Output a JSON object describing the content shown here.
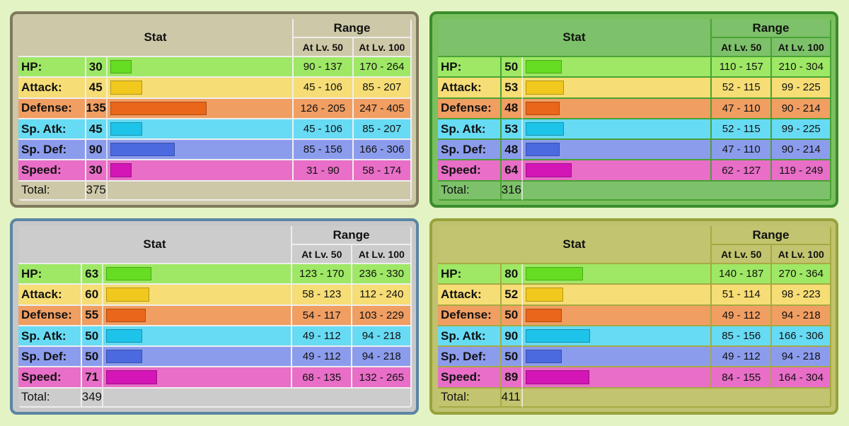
{
  "headers": {
    "stat": "Stat",
    "range": "Range",
    "lv50": "At Lv. 50",
    "lv100": "At Lv. 100",
    "total": "Total:"
  },
  "stat_labels": [
    "HP:",
    "Attack:",
    "Defense:",
    "Sp. Atk:",
    "Sp. Def:",
    "Speed:"
  ],
  "bar_colors": [
    "#66dd22",
    "#f0c81e",
    "#e9661a",
    "#1ec3e9",
    "#4b6ae0",
    "#d316b5"
  ],
  "panels": [
    {
      "theme": "tan",
      "values": [
        30,
        45,
        135,
        45,
        90,
        30
      ],
      "lv50": [
        "90 - 137",
        "45 - 106",
        "126 - 205",
        "45 - 106",
        "85 - 156",
        "31 - 90"
      ],
      "lv100": [
        "170 - 264",
        "85 - 207",
        "247 - 405",
        "85 - 207",
        "166 - 306",
        "58 - 174"
      ],
      "total": "375"
    },
    {
      "theme": "green",
      "values": [
        50,
        53,
        48,
        53,
        48,
        64
      ],
      "lv50": [
        "110 - 157",
        "52 - 115",
        "47 - 110",
        "52 - 115",
        "47 - 110",
        "62 - 127"
      ],
      "lv100": [
        "210 - 304",
        "99 - 225",
        "90 - 214",
        "99 - 225",
        "90 - 214",
        "119 - 249"
      ],
      "total": "316"
    },
    {
      "theme": "gray",
      "values": [
        63,
        60,
        55,
        50,
        50,
        71
      ],
      "lv50": [
        "123 - 170",
        "58 - 123",
        "54 - 117",
        "49 - 112",
        "49 - 112",
        "68 - 135"
      ],
      "lv100": [
        "236 - 330",
        "112 - 240",
        "103 - 229",
        "94 - 218",
        "94 - 218",
        "132 - 265"
      ],
      "total": "349"
    },
    {
      "theme": "olive",
      "values": [
        80,
        52,
        50,
        90,
        50,
        89
      ],
      "lv50": [
        "140 - 187",
        "51 - 114",
        "49 - 112",
        "85 - 156",
        "49 - 112",
        "84 - 155"
      ],
      "lv100": [
        "270 - 364",
        "98 - 223",
        "94 - 218",
        "166 - 306",
        "94 - 218",
        "164 - 304"
      ],
      "total": "411"
    }
  ]
}
